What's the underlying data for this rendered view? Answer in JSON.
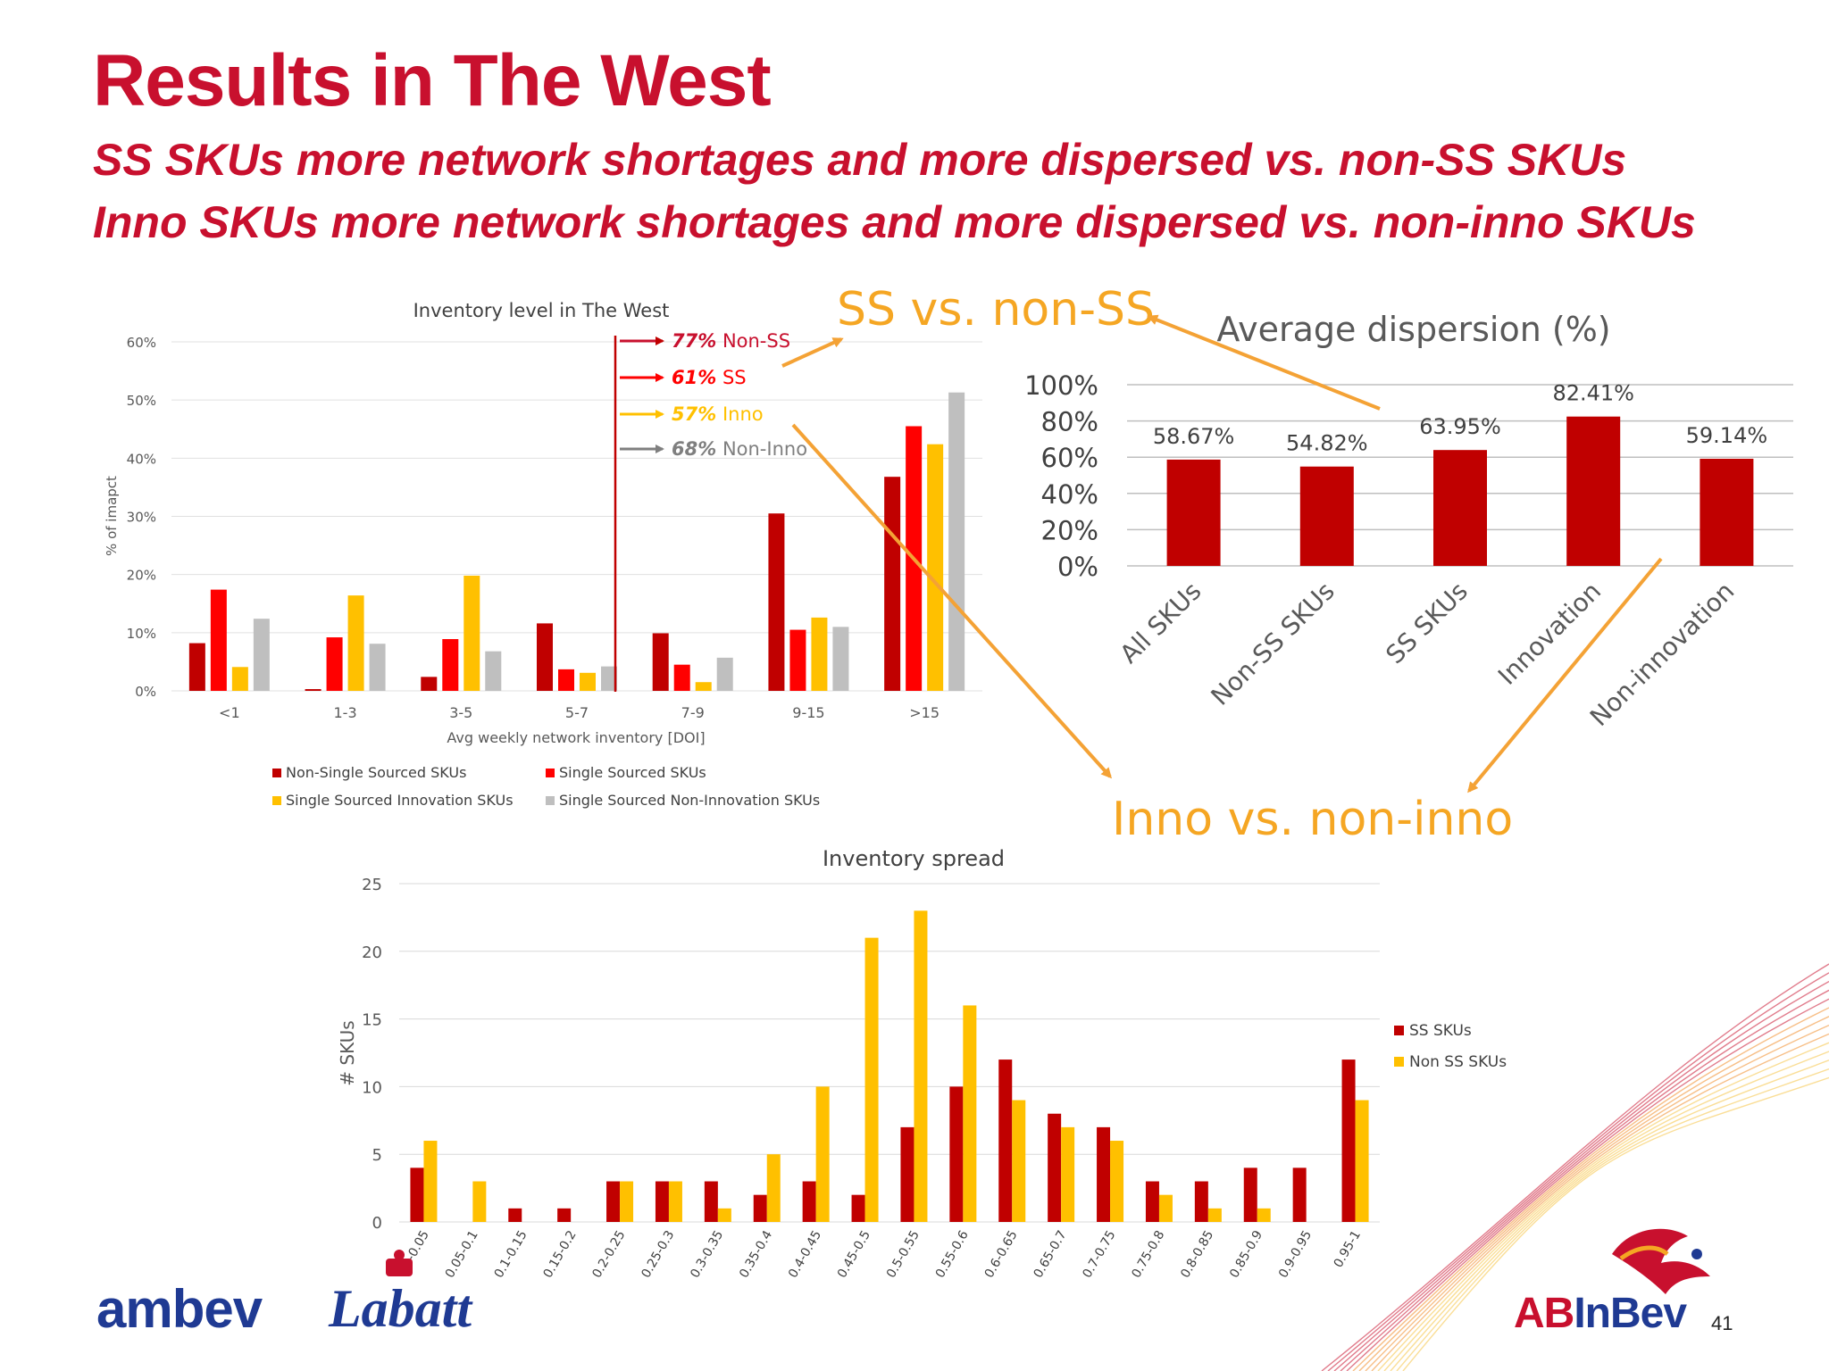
{
  "title": "Results in The West",
  "subtitles": [
    "SS SKUs more network shortages and more dispersed vs. non-SS SKUs",
    "Inno SKUs more network shortages and more dispersed vs. non-inno SKUs"
  ],
  "callouts": {
    "ss": "SS vs. non-SS",
    "inno": "Inno vs. non-inno"
  },
  "annotations": [
    {
      "pct": "77%",
      "label": "Non-SS",
      "color": "#c8102e"
    },
    {
      "pct": "61%",
      "label": "SS",
      "color": "#ff0000"
    },
    {
      "pct": "57%",
      "label": "Inno",
      "color": "#ffc000"
    },
    {
      "pct": "68%",
      "label": "Non-Inno",
      "color": "#7f7f7f"
    }
  ],
  "logos": {
    "ambev": "ambev",
    "labatt": "Labatt",
    "abinbev_ab": "AB",
    "abinbev_rest": "InBev"
  },
  "page_number": "41",
  "colors": {
    "brand_red": "#c8102e",
    "dark_red": "#c00000",
    "red": "#ff0000",
    "gold": "#ffc000",
    "gray": "#bfbfbf",
    "callout_orange": "#f4a235",
    "callout_text": "#f5a623"
  },
  "chart_data": [
    {
      "type": "bar",
      "title": "Inventory level in The West",
      "xlabel": "Avg weekly network inventory [DOI]",
      "ylabel": "% of imapct",
      "ylim": [
        0,
        60
      ],
      "yticks": [
        "0%",
        "10%",
        "20%",
        "30%",
        "40%",
        "50%",
        "60%"
      ],
      "categories": [
        "<1",
        "1-3",
        "3-5",
        "5-7",
        "7-9",
        "9-15",
        ">15"
      ],
      "series": [
        {
          "name": "Non-Single Sourced SKUs",
          "color": "#c00000",
          "values": [
            8.2,
            0.3,
            2.4,
            11.6,
            9.9,
            30.5,
            36.8
          ]
        },
        {
          "name": "Single Sourced SKUs",
          "color": "#ff0000",
          "values": [
            17.4,
            9.2,
            8.9,
            3.7,
            4.5,
            10.5,
            45.5
          ]
        },
        {
          "name": "Single Sourced Innovation SKUs",
          "color": "#ffc000",
          "values": [
            4.1,
            16.4,
            19.8,
            3.1,
            1.5,
            12.6,
            42.4
          ]
        },
        {
          "name": "Single Sourced Non-Innovation SKUs",
          "color": "#bfbfbf",
          "values": [
            12.4,
            8.1,
            6.8,
            4.2,
            5.7,
            11.0,
            51.3
          ]
        }
      ],
      "legend": "bottom"
    },
    {
      "type": "bar",
      "title": "Average dispersion (%)",
      "categories": [
        "All SKUs",
        "Non-SS SKUs",
        "SS SKUs",
        "Innovation",
        "Non-innovation"
      ],
      "values": [
        58.67,
        54.82,
        63.95,
        82.41,
        59.14
      ],
      "data_labels": [
        "58.67%",
        "54.82%",
        "63.95%",
        "82.41%",
        "59.14%"
      ],
      "ylim": [
        0,
        100
      ],
      "yticks": [
        "0%",
        "20%",
        "40%",
        "60%",
        "80%",
        "100%"
      ],
      "color": "#c00000"
    },
    {
      "type": "bar",
      "title": "Inventory spread",
      "ylabel": "# SKUs",
      "ylim": [
        0,
        25
      ],
      "yticks": [
        "0",
        "5",
        "10",
        "15",
        "20",
        "25"
      ],
      "categories": [
        "0-0.05",
        "0.05-0.1",
        "0.1-0.15",
        "0.15-0.2",
        "0.2-0.25",
        "0.25-0.3",
        "0.3-0.35",
        "0.35-0.4",
        "0.4-0.45",
        "0.45-0.5",
        "0.5-0.55",
        "0.55-0.6",
        "0.6-0.65",
        "0.65-0.7",
        "0.7-0.75",
        "0.75-0.8",
        "0.8-0.85",
        "0.85-0.9",
        "0.9-0.95",
        "0.95-1"
      ],
      "series": [
        {
          "name": "SS SKUs",
          "color": "#c00000",
          "values": [
            4,
            0,
            1,
            1,
            3,
            3,
            3,
            2,
            3,
            2,
            7,
            10,
            12,
            8,
            7,
            3,
            3,
            4,
            4,
            12
          ]
        },
        {
          "name": "Non SS SKUs",
          "color": "#ffc000",
          "values": [
            6,
            3,
            0,
            0,
            3,
            3,
            1,
            5,
            10,
            21,
            23,
            16,
            9,
            7,
            6,
            2,
            1,
            1,
            0,
            9
          ]
        }
      ],
      "legend": "right"
    }
  ]
}
